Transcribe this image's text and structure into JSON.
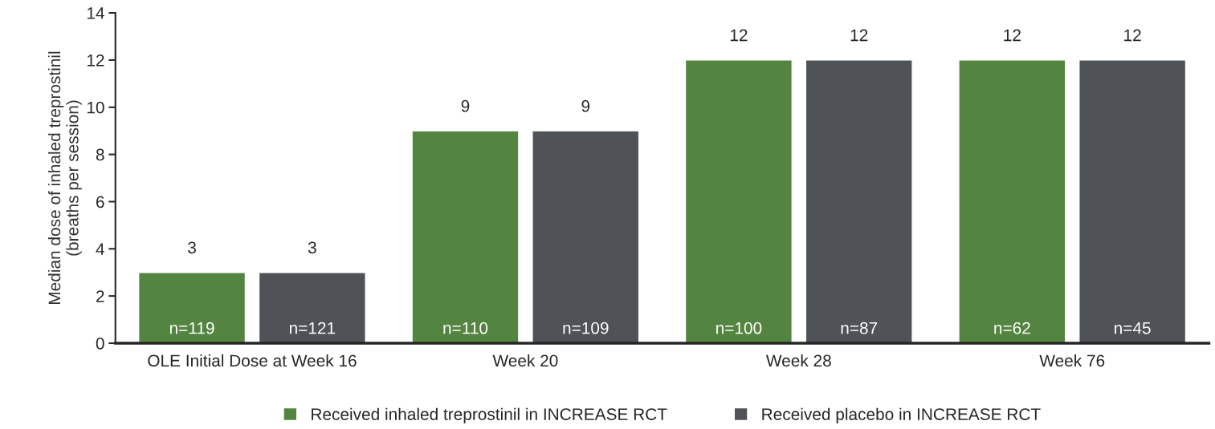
{
  "chart_data": {
    "type": "bar",
    "ylabel": "Median dose of inhaled treprostinil\n(breaths per session)",
    "categories": [
      "OLE Initial Dose at Week 16",
      "Week 20",
      "Week 28",
      "Week 76"
    ],
    "series": [
      {
        "name": "Received inhaled treprostinil in INCREASE RCT",
        "color": "#548540",
        "values": [
          3,
          9,
          12,
          12
        ]
      },
      {
        "name": "Received placebo in INCREASE RCT",
        "color": "#4f5256",
        "values": [
          3,
          9,
          12,
          12
        ]
      }
    ],
    "ylim": [
      0,
      14
    ],
    "yticks": [
      0,
      2,
      4,
      6,
      8,
      10,
      12,
      14
    ],
    "data_labels": true,
    "grid": false,
    "legend": "bottom",
    "annotations": [
      "n=119",
      "n=121",
      "n=110",
      "n=109",
      "n=100",
      "n=87",
      "n=62",
      "n=45"
    ]
  }
}
